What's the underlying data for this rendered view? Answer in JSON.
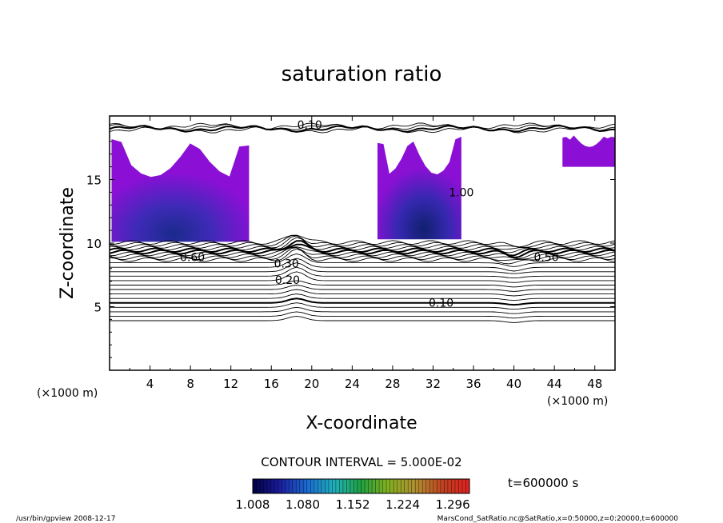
{
  "chart_data": {
    "type": "heatmap",
    "title": "saturation ratio",
    "xlabel": "X-coordinate",
    "ylabel": "Z-coordinate",
    "x_unit_left": "(×1000 m)",
    "x_unit_right": "(×1000 m)",
    "xlim": [
      0,
      50
    ],
    "ylim": [
      0,
      20
    ],
    "x_ticks": [
      4,
      8,
      12,
      16,
      20,
      24,
      28,
      32,
      36,
      40,
      44,
      48
    ],
    "y_ticks": [
      5,
      10,
      15
    ],
    "contour_interval_text": "CONTOUR INTERVAL = 5.000E-02",
    "contour_labels": [
      {
        "text": "0.10",
        "x": 19.8,
        "z": 19.3
      },
      {
        "text": "0.10",
        "x": 32.8,
        "z": 5.3
      },
      {
        "text": "0.30",
        "x": 17.5,
        "z": 8.4
      },
      {
        "text": "0.20",
        "x": 17.6,
        "z": 7.1
      },
      {
        "text": "0.60",
        "x": 8.2,
        "z": 8.9
      },
      {
        "text": "0.50",
        "x": 43.2,
        "z": 8.9
      },
      {
        "text": "1.00",
        "x": 34.8,
        "z": 14.0
      }
    ],
    "shaded_regions": [
      {
        "x": [
          0.2,
          13.8
        ],
        "z": [
          10.1,
          18.6
        ]
      },
      {
        "x": [
          26.5,
          34.8
        ],
        "z": [
          10.3,
          18.8
        ]
      },
      {
        "x": [
          44.8,
          50.0
        ],
        "z": [
          16.0,
          18.6
        ]
      }
    ],
    "colorbar": {
      "tick_labels": [
        "1.008",
        "1.080",
        "1.152",
        "1.224",
        "1.296"
      ],
      "min": 1.008,
      "max": 1.32
    },
    "time_label": "t=600000 s",
    "colors": {
      "fill_low": "#8c0fd6",
      "fill_deep": "#2f2ab3",
      "fill_core": "#1a2a8c",
      "line": "#000000"
    }
  },
  "footer": {
    "left": "/usr/bin/gpview   2008-12-17",
    "right": "MarsCond_SatRatio.nc@SatRatio,x=0:50000,z=0:20000,t=600000"
  }
}
